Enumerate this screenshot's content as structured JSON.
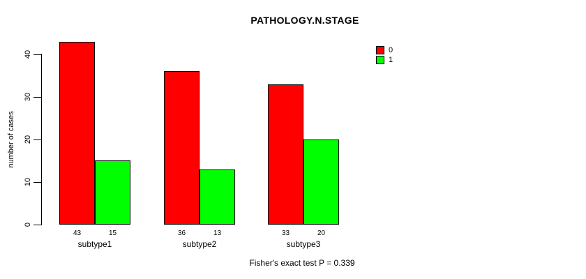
{
  "chart_data": {
    "type": "bar",
    "title": "PATHOLOGY.N.STAGE",
    "xlabel": "",
    "ylabel": "number of cases",
    "categories": [
      "subtype1",
      "subtype2",
      "subtype3"
    ],
    "series": [
      {
        "name": "0",
        "color": "#ff0000",
        "values": [
          43,
          36,
          33
        ]
      },
      {
        "name": "1",
        "color": "#00ff00",
        "values": [
          15,
          13,
          20
        ]
      }
    ],
    "bar_value_labels": [
      [
        "43",
        "15"
      ],
      [
        "36",
        "13"
      ],
      [
        "33",
        "20"
      ]
    ],
    "ylim": [
      0,
      43
    ],
    "yticks": [
      0,
      10,
      20,
      30,
      40
    ],
    "grid": false,
    "legend_position": "top-right",
    "annotation": "Fisher's exact test P = 0.339"
  }
}
